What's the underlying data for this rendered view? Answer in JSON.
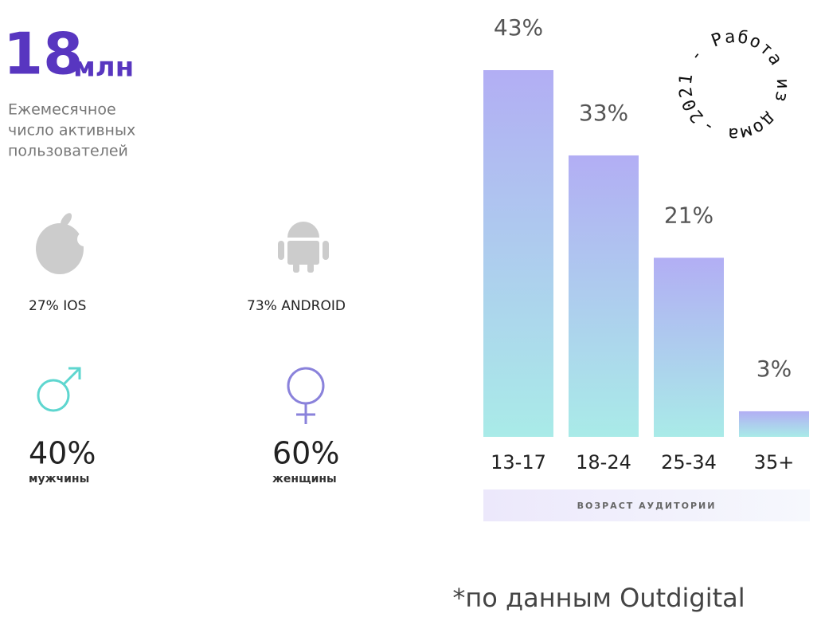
{
  "header": {
    "number": "18",
    "unit": "млн",
    "caption": [
      "Ежемесячное",
      "число активных",
      "пользователей"
    ]
  },
  "platforms": [
    {
      "label": "27% IOS"
    },
    {
      "label": "73% ANDROID"
    }
  ],
  "gender": [
    {
      "percent": "40%",
      "label": "мужчины"
    },
    {
      "percent": "60%",
      "label": "женщины"
    }
  ],
  "stamp": "2021 - Работа из дома - ",
  "footnote": "*по данным Outdigital",
  "chart_data": {
    "type": "bar",
    "x_label": "возраст аудитории",
    "categories": [
      "13-17",
      "18-24",
      "25-34",
      "35+"
    ],
    "values": [
      43,
      33,
      21,
      3
    ],
    "value_labels": [
      "43%",
      "33%",
      "21%",
      "3%"
    ]
  }
}
